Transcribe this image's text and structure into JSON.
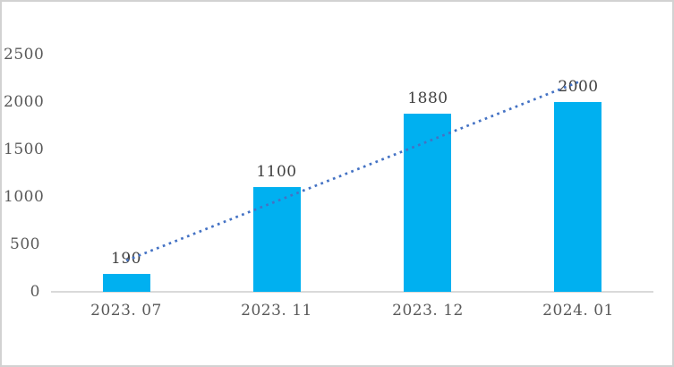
{
  "window": {
    "background_color": "#ffffff",
    "border_color": "#d2d2d2"
  },
  "chart_data": {
    "type": "bar",
    "title": "",
    "xlabel": "",
    "ylabel": "",
    "categories": [
      "2023. 07",
      "2023. 11",
      "2023. 12",
      "2024. 01"
    ],
    "values": [
      190,
      1100,
      1880,
      2000
    ],
    "data_labels": [
      "190",
      "1100",
      "1880",
      "2000"
    ],
    "ylim": [
      0,
      2500
    ],
    "yticks": [
      0,
      500,
      1000,
      1500,
      2000,
      2500
    ],
    "grid": false,
    "legend": false,
    "bar_color": "#00b0f0",
    "axis_line_color": "#d9d9d9",
    "tick_label_color": "#595959",
    "data_label_color": "#3f3f3f",
    "trendline": {
      "style": "dotted",
      "color": "#4472c4",
      "start_value": 330,
      "end_value": 2210
    }
  }
}
